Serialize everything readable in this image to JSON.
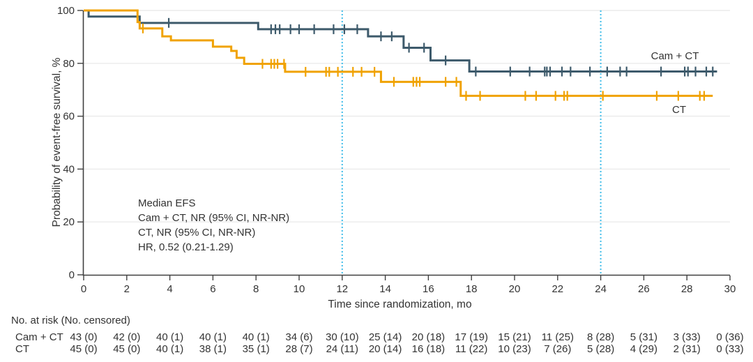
{
  "chart_data": {
    "type": "line",
    "subtype": "kaplan-meier-step",
    "title": "",
    "xlabel": "Time since randomization, mo",
    "ylabel": "Probability of event-free survival, %",
    "xlim": [
      0,
      30
    ],
    "ylim": [
      0,
      100
    ],
    "x_ticks": [
      0,
      2,
      4,
      6,
      8,
      10,
      12,
      14,
      16,
      18,
      20,
      22,
      24,
      26,
      28,
      30
    ],
    "y_ticks": [
      0,
      20,
      40,
      60,
      80,
      100
    ],
    "grid": "horizontal-on",
    "legend_position": "right-inline",
    "reference_lines_x": [
      12,
      24
    ],
    "reference_line_style": "dotted",
    "colors": {
      "cam_ct": "#3d5a6b",
      "ct": "#f0a202",
      "reference": "#41bde9",
      "axis": "#404040",
      "grid": "#ebebeb",
      "text": "#333333"
    },
    "series": [
      {
        "name": "Cam + CT",
        "color": "#3d5a6b",
        "start_level": 100,
        "drops": [
          [
            0.23,
            97.7
          ],
          [
            2.6,
            95.3
          ],
          [
            8.1,
            92.9
          ],
          [
            13.2,
            90.2
          ],
          [
            14.85,
            85.9
          ],
          [
            16.1,
            81.1
          ],
          [
            17.9,
            76.9
          ]
        ],
        "end_x": 29.4,
        "censors": [
          [
            3.95,
            95.3
          ],
          [
            8.7,
            92.9
          ],
          [
            8.9,
            92.9
          ],
          [
            9.1,
            92.9
          ],
          [
            9.6,
            92.9
          ],
          [
            10.0,
            92.9
          ],
          [
            10.7,
            92.9
          ],
          [
            11.6,
            92.9
          ],
          [
            12.1,
            92.9
          ],
          [
            12.7,
            92.9
          ],
          [
            13.8,
            90.2
          ],
          [
            14.3,
            90.2
          ],
          [
            15.1,
            85.9
          ],
          [
            15.8,
            85.9
          ],
          [
            16.8,
            81.1
          ],
          [
            18.2,
            76.9
          ],
          [
            19.8,
            76.9
          ],
          [
            20.7,
            76.9
          ],
          [
            21.4,
            76.9
          ],
          [
            21.5,
            76.9
          ],
          [
            21.65,
            76.9
          ],
          [
            22.2,
            76.9
          ],
          [
            22.6,
            76.9
          ],
          [
            23.5,
            76.9
          ],
          [
            24.3,
            76.9
          ],
          [
            24.9,
            76.9
          ],
          [
            25.2,
            76.9
          ],
          [
            26.8,
            76.9
          ],
          [
            27.9,
            76.9
          ],
          [
            28.05,
            76.9
          ],
          [
            28.4,
            76.9
          ],
          [
            28.9,
            76.9
          ],
          [
            29.2,
            76.9
          ]
        ]
      },
      {
        "name": "CT",
        "color": "#f0a202",
        "start_level": 100,
        "drops": [
          [
            2.5,
            95.6
          ],
          [
            2.6,
            93.2
          ],
          [
            3.65,
            90.2
          ],
          [
            4.05,
            88.7
          ],
          [
            6.0,
            86.3
          ],
          [
            6.85,
            84.7
          ],
          [
            7.1,
            82.1
          ],
          [
            7.45,
            79.8
          ],
          [
            9.35,
            76.8
          ],
          [
            13.8,
            73.0
          ],
          [
            17.5,
            67.7
          ]
        ],
        "end_x": 29.2,
        "censors": [
          [
            2.75,
            93.2
          ],
          [
            8.3,
            79.8
          ],
          [
            8.7,
            79.8
          ],
          [
            8.85,
            79.8
          ],
          [
            9.0,
            79.8
          ],
          [
            9.3,
            79.8
          ],
          [
            10.3,
            76.8
          ],
          [
            11.25,
            76.8
          ],
          [
            11.4,
            76.8
          ],
          [
            11.8,
            76.8
          ],
          [
            12.5,
            76.8
          ],
          [
            12.9,
            76.8
          ],
          [
            13.5,
            76.8
          ],
          [
            14.4,
            73.0
          ],
          [
            15.3,
            73.0
          ],
          [
            15.45,
            73.0
          ],
          [
            15.6,
            73.0
          ],
          [
            16.8,
            73.0
          ],
          [
            17.3,
            73.0
          ],
          [
            17.75,
            67.7
          ],
          [
            18.4,
            67.7
          ],
          [
            20.5,
            67.7
          ],
          [
            21.0,
            67.7
          ],
          [
            21.9,
            67.7
          ],
          [
            22.3,
            67.7
          ],
          [
            22.45,
            67.7
          ],
          [
            24.1,
            67.7
          ],
          [
            26.6,
            67.7
          ],
          [
            27.6,
            67.7
          ],
          [
            28.6,
            67.7
          ],
          [
            28.8,
            67.7
          ]
        ]
      }
    ],
    "annotation": {
      "lines": [
        "Median EFS",
        "Cam + CT, NR (95% CI, NR-NR)",
        "CT, NR (95% CI, NR-NR)",
        "HR, 0.52 (0.21-1.29)"
      ]
    }
  },
  "risk_table": {
    "header": "No. at risk (No. censored)",
    "months": [
      0,
      2,
      4,
      6,
      8,
      10,
      12,
      14,
      16,
      18,
      20,
      22,
      24,
      26,
      28,
      30
    ],
    "rows": [
      {
        "label": "Cam + CT",
        "values": [
          "43 (0)",
          "42 (0)",
          "40 (1)",
          "40 (1)",
          "40 (1)",
          "34 (6)",
          "30 (10)",
          "25 (14)",
          "20 (18)",
          "17 (19)",
          "15 (21)",
          "11 (25)",
          "8 (28)",
          "5 (31)",
          "3 (33)",
          "0 (36)"
        ]
      },
      {
        "label": "CT",
        "values": [
          "45 (0)",
          "45 (0)",
          "40 (1)",
          "38 (1)",
          "35 (1)",
          "28 (7)",
          "24 (11)",
          "20 (14)",
          "16 (18)",
          "11 (22)",
          "10 (23)",
          "7 (26)",
          "5 (28)",
          "4 (29)",
          "2 (31)",
          "0 (33)"
        ]
      }
    ]
  }
}
